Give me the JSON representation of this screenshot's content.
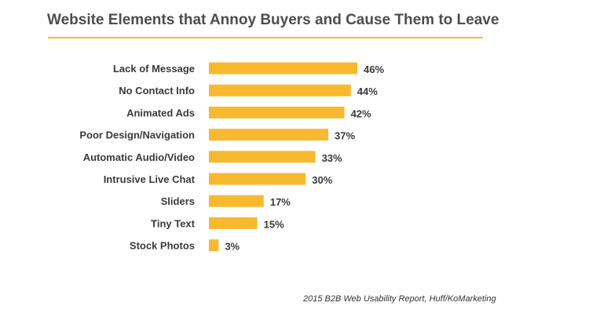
{
  "colors": {
    "bar": "#f8b92f",
    "label_text": "#3a3a3a",
    "title_text": "#4d4d4d",
    "rule": "#f5bb29"
  },
  "chart_data": {
    "type": "bar",
    "orientation": "horizontal",
    "title": "Website Elements that Annoy Buyers and Cause Them to Leave",
    "source": "2015 B2B Web Usability Report, Huff/KoMarketing",
    "categories": [
      "Lack of Message",
      "No Contact Info",
      "Animated Ads",
      "Poor Design/Navigation",
      "Automatic Audio/Video",
      "Intrusive Live Chat",
      "Sliders",
      "Tiny Text",
      "Stock Photos"
    ],
    "values": [
      46,
      44,
      42,
      37,
      33,
      30,
      17,
      15,
      3
    ],
    "data_labels": [
      "46%",
      "44%",
      "42%",
      "37%",
      "33%",
      "30%",
      "17%",
      "15%",
      "3%"
    ],
    "unit": "%",
    "xlim": [
      0,
      46
    ],
    "grid": false,
    "legend": "none"
  }
}
